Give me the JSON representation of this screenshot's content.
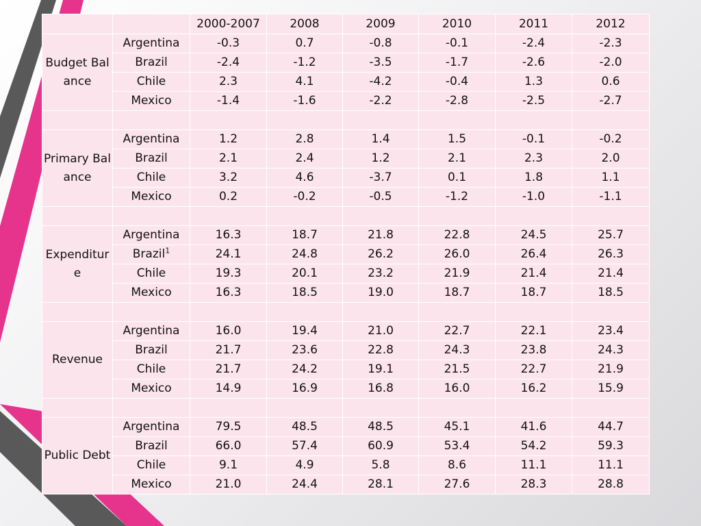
{
  "colors": {
    "cell_bg": "#fce4ec",
    "grid": "#ffffff",
    "accent_pink": "#e6338c",
    "accent_gray": "#555555"
  },
  "table": {
    "headers": [
      "",
      "",
      "2000-2007",
      "2008",
      "2009",
      "2010",
      "2011",
      "2012"
    ],
    "groups": [
      {
        "name": "Budget Balance",
        "rows": [
          {
            "country": "Argentina",
            "values": [
              "-0.3",
              "0.7",
              "-0.8",
              "-0.1",
              "-2.4",
              "-2.3"
            ]
          },
          {
            "country": "Brazil",
            "values": [
              "-2.4",
              "-1.2",
              "-3.5",
              "-1.7",
              "-2.6",
              "-2.0"
            ]
          },
          {
            "country": "Chile",
            "values": [
              "2.3",
              "4.1",
              "-4.2",
              "-0.4",
              "1.3",
              "0.6"
            ]
          },
          {
            "country": "Mexico",
            "values": [
              "-1.4",
              "-1.6",
              "-2.2",
              "-2.8",
              "-2.5",
              "-2.7"
            ]
          }
        ]
      },
      {
        "name": "Primary Balance",
        "rows": [
          {
            "country": "Argentina",
            "values": [
              "1.2",
              "2.8",
              "1.4",
              "1.5",
              "-0.1",
              "-0.2"
            ]
          },
          {
            "country": "Brazil",
            "values": [
              "2.1",
              "2.4",
              "1.2",
              "2.1",
              "2.3",
              "2.0"
            ]
          },
          {
            "country": "Chile",
            "values": [
              "3.2",
              "4.6",
              "-3.7",
              "0.1",
              "1.8",
              "1.1"
            ]
          },
          {
            "country": "Mexico",
            "values": [
              "0.2",
              "-0.2",
              "-0.5",
              "-1.2",
              "-1.0",
              "-1.1"
            ]
          }
        ]
      },
      {
        "name": "Expenditure",
        "rows": [
          {
            "country": "Argentina",
            "values": [
              "16.3",
              "18.7",
              "21.8",
              "22.8",
              "24.5",
              "25.7"
            ]
          },
          {
            "country": "Brazil",
            "footnote": "1",
            "values": [
              "24.1",
              "24.8",
              "26.2",
              "26.0",
              "26.4",
              "26.3"
            ]
          },
          {
            "country": "Chile",
            "values": [
              "19.3",
              "20.1",
              "23.2",
              "21.9",
              "21.4",
              "21.4"
            ]
          },
          {
            "country": "Mexico",
            "values": [
              "16.3",
              "18.5",
              "19.0",
              "18.7",
              "18.7",
              "18.5"
            ]
          }
        ]
      },
      {
        "name": "Revenue",
        "rows": [
          {
            "country": "Argentina",
            "values": [
              "16.0",
              "19.4",
              "21.0",
              "22.7",
              "22.1",
              "23.4"
            ]
          },
          {
            "country": "Brazil",
            "values": [
              "21.7",
              "23.6",
              "22.8",
              "24.3",
              "23.8",
              "24.3"
            ]
          },
          {
            "country": "Chile",
            "values": [
              "21.7",
              "24.2",
              "19.1",
              "21.5",
              "22.7",
              "21.9"
            ]
          },
          {
            "country": "Mexico",
            "values": [
              "14.9",
              "16.9",
              "16.8",
              "16.0",
              "16.2",
              "15.9"
            ]
          }
        ]
      },
      {
        "name": "Public Debt",
        "rows": [
          {
            "country": "Argentina",
            "values": [
              "79.5",
              "48.5",
              "48.5",
              "45.1",
              "41.6",
              "44.7"
            ]
          },
          {
            "country": "Brazil",
            "values": [
              "66.0",
              "57.4",
              "60.9",
              "53.4",
              "54.2",
              "59.3"
            ]
          },
          {
            "country": "Chile",
            "values": [
              "9.1",
              "4.9",
              "5.8",
              "8.6",
              "11.1",
              "11.1"
            ]
          },
          {
            "country": "Mexico",
            "values": [
              "21.0",
              "24.4",
              "28.1",
              "27.6",
              "28.3",
              "28.8"
            ]
          }
        ]
      }
    ]
  }
}
